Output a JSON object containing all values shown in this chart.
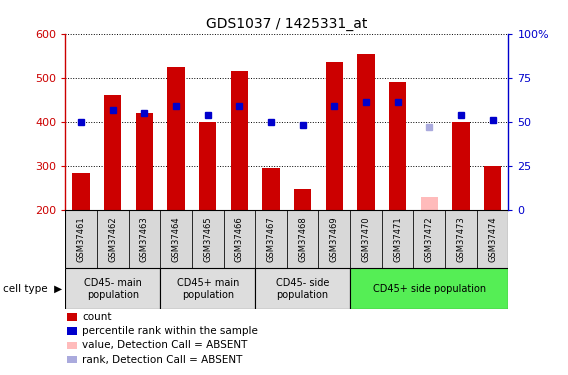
{
  "title": "GDS1037 / 1425331_at",
  "samples": [
    "GSM37461",
    "GSM37462",
    "GSM37463",
    "GSM37464",
    "GSM37465",
    "GSM37466",
    "GSM37467",
    "GSM37468",
    "GSM37469",
    "GSM37470",
    "GSM37471",
    "GSM37472",
    "GSM37473",
    "GSM37474"
  ],
  "bar_values": [
    285,
    460,
    420,
    525,
    400,
    515,
    295,
    248,
    535,
    555,
    490,
    230,
    400,
    300
  ],
  "bar_colors": [
    "#cc0000",
    "#cc0000",
    "#cc0000",
    "#cc0000",
    "#cc0000",
    "#cc0000",
    "#cc0000",
    "#cc0000",
    "#cc0000",
    "#cc0000",
    "#cc0000",
    "#ffbbbb",
    "#cc0000",
    "#cc0000"
  ],
  "rank_values": [
    50,
    57,
    55,
    59,
    54,
    59,
    50,
    48,
    59,
    61,
    61,
    47,
    54,
    51
  ],
  "rank_colors": [
    "#0000cc",
    "#0000cc",
    "#0000cc",
    "#0000cc",
    "#0000cc",
    "#0000cc",
    "#0000cc",
    "#0000cc",
    "#0000cc",
    "#0000cc",
    "#0000cc",
    "#aaaadd",
    "#0000cc",
    "#0000cc"
  ],
  "ylim_left": [
    200,
    600
  ],
  "ylim_right": [
    0,
    100
  ],
  "yticks_left": [
    200,
    300,
    400,
    500,
    600
  ],
  "yticks_right": [
    0,
    25,
    50,
    75,
    100
  ],
  "groups": [
    {
      "label": "CD45- main\npopulation",
      "start": 0,
      "end": 3,
      "color": "#dddddd"
    },
    {
      "label": "CD45+ main\npopulation",
      "start": 3,
      "end": 6,
      "color": "#dddddd"
    },
    {
      "label": "CD45- side\npopulation",
      "start": 6,
      "end": 9,
      "color": "#dddddd"
    },
    {
      "label": "CD45+ side population",
      "start": 9,
      "end": 14,
      "color": "#55ee55"
    }
  ],
  "bar_width": 0.55,
  "yaxis_left_color": "#cc0000",
  "yaxis_right_color": "#0000cc",
  "legend_items": [
    {
      "label": "count",
      "color": "#cc0000"
    },
    {
      "label": "percentile rank within the sample",
      "color": "#0000cc"
    },
    {
      "label": "value, Detection Call = ABSENT",
      "color": "#ffbbbb"
    },
    {
      "label": "rank, Detection Call = ABSENT",
      "color": "#aaaadd"
    }
  ]
}
